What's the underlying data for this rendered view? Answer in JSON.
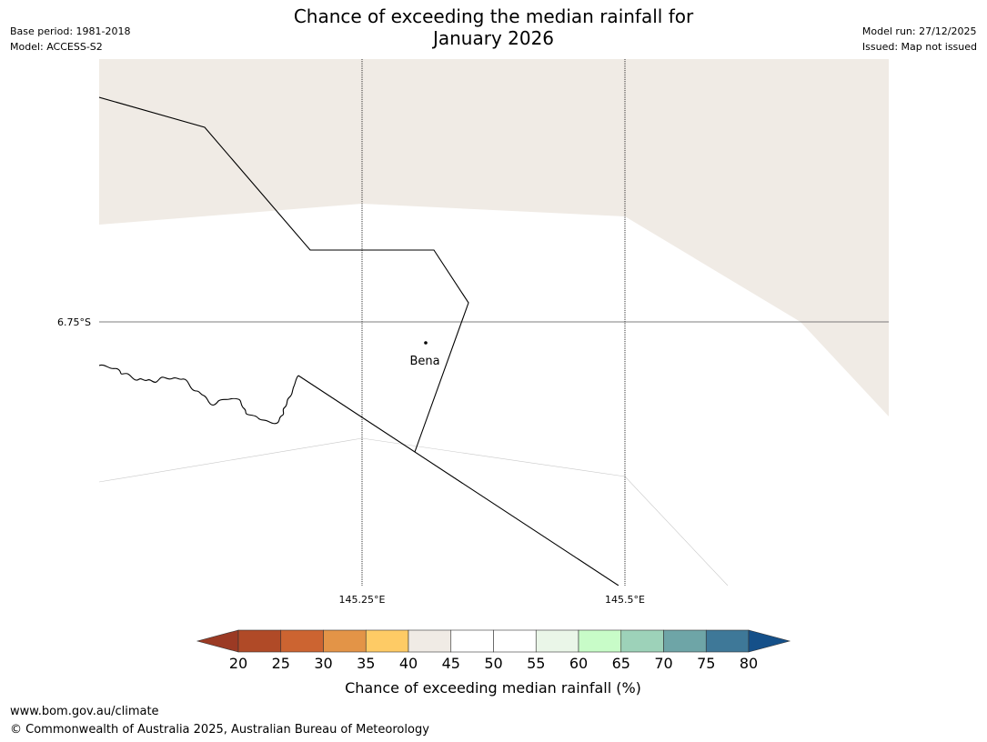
{
  "title": {
    "line1": "Chance of exceeding the median rainfall for",
    "line2": "January 2026"
  },
  "meta_left": {
    "base_period": "Base period: 1981-2018",
    "model": "Model: ACCESS-S2"
  },
  "meta_right": {
    "model_run": "Model run: 27/12/2025",
    "issued": "Issued: Map not issued"
  },
  "map": {
    "place_label": "Bena",
    "lat_label": "6.75°S",
    "lon_labels": [
      "145.25°E",
      "145.5°E"
    ],
    "colors": {
      "tan_area": "#f0ebe5",
      "white_area": "#ffffff",
      "border": "#000000",
      "grid": "#000000"
    }
  },
  "colorbar": {
    "label": "Chance of exceeding median rainfall (%)",
    "ticks": [
      "20",
      "25",
      "30",
      "35",
      "40",
      "45",
      "50",
      "55",
      "60",
      "65",
      "70",
      "75",
      "80"
    ],
    "low_extend_color": "#9b3a24",
    "high_extend_color": "#155089",
    "bin_colors": [
      "#b04a27",
      "#cc6431",
      "#e39447",
      "#fecb65",
      "#f0ebe5",
      "#ffffff",
      "#ffffff",
      "#eaf6e8",
      "#c8fcc8",
      "#9dd2b9",
      "#6ea5a7",
      "#3e7898"
    ]
  },
  "footer": {
    "url": "www.bom.gov.au/climate",
    "copyright": "© Commonwealth of Australia 2025, Australian Bureau of Meteorology"
  }
}
